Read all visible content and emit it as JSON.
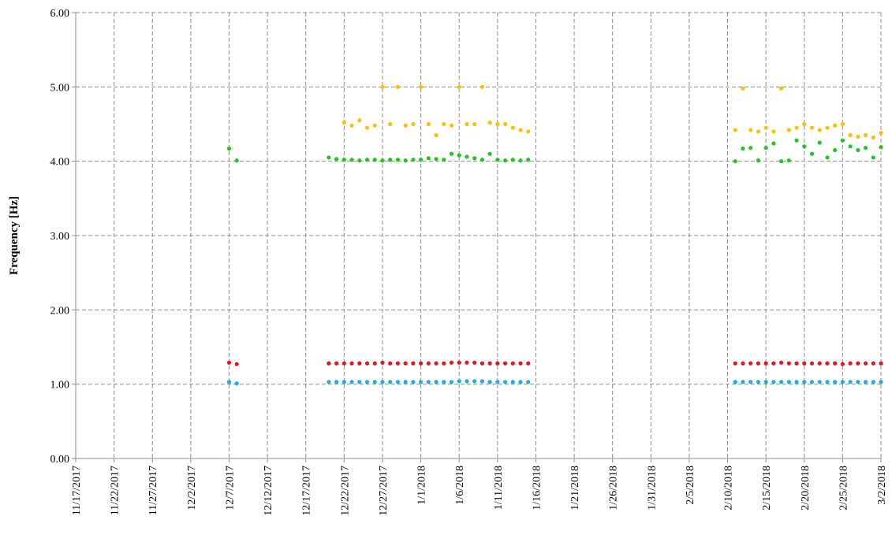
{
  "chart_data": {
    "type": "scatter",
    "y_label": "Frequency [Hz]",
    "ylim": [
      0,
      6
    ],
    "yticks": [
      {
        "value": 0,
        "label": "0.00"
      },
      {
        "value": 1,
        "label": "1.00"
      },
      {
        "value": 2,
        "label": "2.00"
      },
      {
        "value": 3,
        "label": "3.00"
      },
      {
        "value": 4,
        "label": "4.00"
      },
      {
        "value": 5,
        "label": "5.00"
      },
      {
        "value": 6,
        "label": "6.00"
      }
    ],
    "xlim": [
      "2017-11-17",
      "2018-03-02"
    ],
    "xticks": [
      {
        "value": "2017-11-17",
        "label": "11/17/2017"
      },
      {
        "value": "2017-11-22",
        "label": "11/22/2017"
      },
      {
        "value": "2017-11-27",
        "label": "11/27/2017"
      },
      {
        "value": "2017-12-02",
        "label": "12/2/2017"
      },
      {
        "value": "2017-12-07",
        "label": "12/7/2017"
      },
      {
        "value": "2017-12-12",
        "label": "12/12/2017"
      },
      {
        "value": "2017-12-17",
        "label": "12/17/2017"
      },
      {
        "value": "2017-12-22",
        "label": "12/22/2017"
      },
      {
        "value": "2017-12-27",
        "label": "12/27/2017"
      },
      {
        "value": "2018-01-01",
        "label": "1/1/2018"
      },
      {
        "value": "2018-01-06",
        "label": "1/6/2018"
      },
      {
        "value": "2018-01-11",
        "label": "1/11/2018"
      },
      {
        "value": "2018-01-16",
        "label": "1/16/2018"
      },
      {
        "value": "2018-01-21",
        "label": "1/21/2018"
      },
      {
        "value": "2018-01-26",
        "label": "1/26/2018"
      },
      {
        "value": "2018-01-31",
        "label": "1/31/2018"
      },
      {
        "value": "2018-02-05",
        "label": "2/5/2018"
      },
      {
        "value": "2018-02-10",
        "label": "2/10/2018"
      },
      {
        "value": "2018-02-15",
        "label": "2/15/2018"
      },
      {
        "value": "2018-02-20",
        "label": "2/20/2018"
      },
      {
        "value": "2018-02-25",
        "label": "2/25/2018"
      },
      {
        "value": "2018-03-02",
        "label": "3/2/2018"
      }
    ],
    "grid": true,
    "series": [
      {
        "color": "#1aaee6",
        "x": [
          "2017-12-07",
          "2017-12-08",
          "2017-12-20",
          "2017-12-21",
          "2017-12-22",
          "2017-12-23",
          "2017-12-24",
          "2017-12-25",
          "2017-12-26",
          "2017-12-27",
          "2017-12-28",
          "2017-12-29",
          "2017-12-30",
          "2017-12-31",
          "2018-01-01",
          "2018-01-02",
          "2018-01-03",
          "2018-01-04",
          "2018-01-05",
          "2018-01-06",
          "2018-01-07",
          "2018-01-08",
          "2018-01-09",
          "2018-01-10",
          "2018-01-11",
          "2018-01-12",
          "2018-01-13",
          "2018-01-14",
          "2018-01-15",
          "2018-02-11",
          "2018-02-12",
          "2018-02-13",
          "2018-02-14",
          "2018-02-15",
          "2018-02-16",
          "2018-02-17",
          "2018-02-18",
          "2018-02-19",
          "2018-02-20",
          "2018-02-21",
          "2018-02-22",
          "2018-02-23",
          "2018-02-24",
          "2018-02-25",
          "2018-02-26",
          "2018-02-27",
          "2018-02-28",
          "2018-03-01",
          "2018-03-02"
        ],
        "values": [
          1.03,
          1.01,
          1.03,
          1.03,
          1.03,
          1.03,
          1.03,
          1.03,
          1.03,
          1.03,
          1.03,
          1.03,
          1.03,
          1.03,
          1.03,
          1.03,
          1.03,
          1.03,
          1.03,
          1.04,
          1.04,
          1.04,
          1.04,
          1.03,
          1.03,
          1.03,
          1.03,
          1.03,
          1.03,
          1.03,
          1.03,
          1.03,
          1.03,
          1.03,
          1.03,
          1.03,
          1.03,
          1.03,
          1.03,
          1.03,
          1.03,
          1.03,
          1.03,
          1.03,
          1.03,
          1.03,
          1.03,
          1.03,
          1.03
        ]
      },
      {
        "color": "#e8141c",
        "x": [
          "2017-12-07",
          "2017-12-08",
          "2017-12-20",
          "2017-12-21",
          "2017-12-22",
          "2017-12-23",
          "2017-12-24",
          "2017-12-25",
          "2017-12-26",
          "2017-12-27",
          "2017-12-28",
          "2017-12-29",
          "2017-12-30",
          "2017-12-31",
          "2018-01-01",
          "2018-01-02",
          "2018-01-03",
          "2018-01-04",
          "2018-01-05",
          "2018-01-06",
          "2018-01-07",
          "2018-01-08",
          "2018-01-09",
          "2018-01-10",
          "2018-01-11",
          "2018-01-12",
          "2018-01-13",
          "2018-01-14",
          "2018-01-15",
          "2018-02-11",
          "2018-02-12",
          "2018-02-13",
          "2018-02-14",
          "2018-02-15",
          "2018-02-16",
          "2018-02-17",
          "2018-02-18",
          "2018-02-19",
          "2018-02-20",
          "2018-02-21",
          "2018-02-22",
          "2018-02-23",
          "2018-02-24",
          "2018-02-25",
          "2018-02-26",
          "2018-02-27",
          "2018-02-28",
          "2018-03-01",
          "2018-03-02"
        ],
        "values": [
          1.29,
          1.27,
          1.28,
          1.28,
          1.28,
          1.28,
          1.28,
          1.28,
          1.28,
          1.29,
          1.28,
          1.28,
          1.28,
          1.28,
          1.28,
          1.28,
          1.28,
          1.28,
          1.29,
          1.29,
          1.29,
          1.29,
          1.28,
          1.28,
          1.28,
          1.28,
          1.28,
          1.28,
          1.28,
          1.28,
          1.28,
          1.28,
          1.28,
          1.28,
          1.28,
          1.29,
          1.28,
          1.28,
          1.28,
          1.28,
          1.28,
          1.28,
          1.28,
          1.27,
          1.28,
          1.28,
          1.28,
          1.28,
          1.28
        ]
      },
      {
        "color": "#1ec81e",
        "x": [
          "2017-12-07",
          "2017-12-08",
          "2017-12-20",
          "2017-12-21",
          "2017-12-22",
          "2017-12-23",
          "2017-12-24",
          "2017-12-25",
          "2017-12-26",
          "2017-12-27",
          "2017-12-28",
          "2017-12-29",
          "2017-12-30",
          "2017-12-31",
          "2018-01-01",
          "2018-01-02",
          "2018-01-03",
          "2018-01-04",
          "2018-01-05",
          "2018-01-06",
          "2018-01-07",
          "2018-01-08",
          "2018-01-09",
          "2018-01-10",
          "2018-01-11",
          "2018-01-12",
          "2018-01-13",
          "2018-01-14",
          "2018-01-15",
          "2018-02-11",
          "2018-02-12",
          "2018-02-13",
          "2018-02-14",
          "2018-02-15",
          "2018-02-16",
          "2018-02-17",
          "2018-02-18",
          "2018-02-19",
          "2018-02-20",
          "2018-02-21",
          "2018-02-22",
          "2018-02-23",
          "2018-02-24",
          "2018-02-25",
          "2018-02-26",
          "2018-02-27",
          "2018-02-28",
          "2018-03-01",
          "2018-03-02"
        ],
        "values": [
          4.17,
          4.01,
          4.05,
          4.03,
          4.02,
          4.02,
          4.01,
          4.02,
          4.02,
          4.01,
          4.02,
          4.02,
          4.01,
          4.02,
          4.02,
          4.04,
          4.03,
          4.02,
          4.1,
          4.08,
          4.06,
          4.04,
          4.02,
          4.1,
          4.02,
          4.01,
          4.02,
          4.01,
          4.02,
          4.0,
          4.17,
          4.18,
          4.01,
          4.18,
          4.24,
          4.0,
          4.01,
          4.28,
          4.2,
          4.1,
          4.25,
          4.05,
          4.15,
          4.28,
          4.2,
          4.15,
          4.18,
          4.05,
          4.19
        ]
      },
      {
        "color": "#ffc000",
        "x": [
          "2017-12-22",
          "2017-12-23",
          "2017-12-24",
          "2017-12-25",
          "2017-12-26",
          "2017-12-27",
          "2017-12-28",
          "2017-12-29",
          "2017-12-30",
          "2017-12-31",
          "2018-01-01",
          "2018-01-02",
          "2018-01-03",
          "2018-01-04",
          "2018-01-05",
          "2018-01-06",
          "2018-01-07",
          "2018-01-08",
          "2018-01-09",
          "2018-01-10",
          "2018-01-11",
          "2018-01-12",
          "2018-01-13",
          "2018-01-14",
          "2018-01-15",
          "2018-02-11",
          "2018-02-12",
          "2018-02-13",
          "2018-02-14",
          "2018-02-15",
          "2018-02-16",
          "2018-02-17",
          "2018-02-18",
          "2018-02-19",
          "2018-02-20",
          "2018-02-21",
          "2018-02-22",
          "2018-02-23",
          "2018-02-24",
          "2018-02-25",
          "2018-02-26",
          "2018-02-27",
          "2018-02-28",
          "2018-03-01",
          "2018-03-02"
        ],
        "values": [
          4.52,
          4.48,
          4.55,
          4.45,
          4.48,
          5.0,
          4.5,
          5.0,
          4.48,
          4.5,
          5.0,
          4.5,
          4.35,
          4.5,
          4.48,
          5.0,
          4.5,
          4.5,
          5.0,
          4.52,
          4.5,
          4.5,
          4.45,
          4.42,
          4.4,
          4.42,
          4.98,
          4.42,
          4.4,
          4.45,
          4.4,
          4.98,
          4.42,
          4.45,
          4.5,
          4.45,
          4.42,
          4.45,
          4.48,
          4.5,
          4.35,
          4.33,
          4.35,
          4.32,
          4.38
        ]
      }
    ]
  }
}
